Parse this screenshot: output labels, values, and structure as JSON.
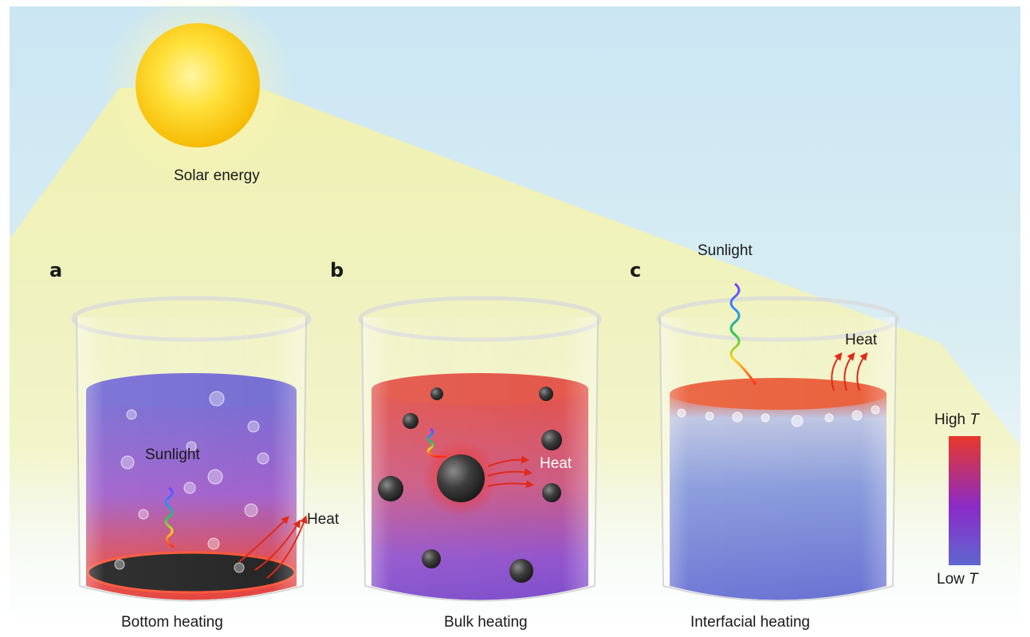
{
  "sun_label": "Solar energy",
  "panels": [
    {
      "letter": "a",
      "caption": "Bottom heating",
      "sunlight_label": "Sunlight",
      "heat_label": "Heat"
    },
    {
      "letter": "b",
      "caption": "Bulk heating",
      "heat_label": "Heat"
    },
    {
      "letter": "c",
      "caption": "Interfacial heating",
      "sunlight_label": "Sunlight",
      "heat_label": "Heat"
    }
  ],
  "temperature_scale": {
    "high_label": "High ",
    "low_label": "Low ",
    "symbol": "T",
    "high_color": "#e8382a",
    "mid_color": "#8a2bc8",
    "low_color": "#5f67cf"
  },
  "colors": {
    "sky": "#c9e6f2",
    "sun": "#ffd21a",
    "beam": "#f4f2a8",
    "absorber": "#1a1a1a",
    "particle": "#3a3a3a",
    "heat_arrow": "#e02a1a"
  }
}
